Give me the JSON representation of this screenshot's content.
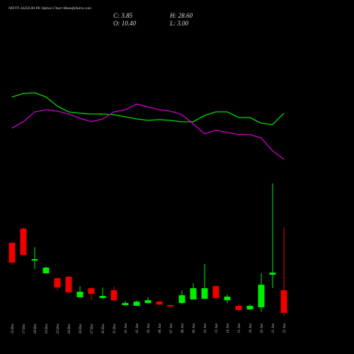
{
  "chart_data": {
    "type": "candlestick",
    "title": "NIFTY 24250.00 PE Option Chart MunafaSutra.com",
    "header": {
      "close": "C: 3.85",
      "high": "H: 28.60",
      "open": "O: 10.40",
      "low": "L: 3.00"
    },
    "categories": [
      "15 Dec",
      "17 Dec",
      "18 Dec",
      "19 Dec",
      "23 Dec",
      "24 Dec",
      "26 Dec",
      "27 Dec",
      "30 Dec",
      "31 Dec",
      "01 Jan",
      "02 Jan",
      "03 Jan",
      "06 Jan",
      "07 Jan",
      "08 Jan",
      "09 Jan",
      "10 Jan",
      "13 Jan",
      "14 Jan",
      "15 Jan",
      "16 Jan",
      "20 Jan",
      "21 Jan",
      "22 Jan"
    ],
    "open": [
      24.1,
      28.2,
      19.0,
      15.3,
      13.9,
      14.3,
      8.35,
      11.0,
      8.15,
      10.4,
      6.1,
      5.9,
      6.72,
      7.13,
      6.1,
      6.72,
      7.74,
      7.94,
      11.6,
      7.53,
      5.9,
      4.87,
      5.49,
      14.9,
      10.4
    ],
    "high": [
      24.5,
      28.6,
      22.9,
      17.2,
      13.9,
      14.5,
      11.6,
      11.2,
      11.2,
      11.4,
      7.33,
      7.53,
      8.35,
      7.3,
      6.2,
      10.4,
      12.45,
      17.97,
      11.8,
      9.17,
      6.5,
      6.3,
      15.3,
      41.3,
      28.6
    ],
    "low": [
      18.2,
      20.5,
      16.5,
      15.2,
      10.4,
      9.6,
      8.35,
      7.53,
      7.94,
      7.4,
      5.9,
      5.9,
      6.51,
      6.1,
      5.6,
      6.3,
      7.74,
      7.94,
      7.94,
      6.72,
      4.3,
      4.67,
      4.26,
      11.0,
      3.0
    ],
    "close": [
      18.4,
      20.6,
      19.4,
      16.95,
      11.2,
      9.79,
      9.99,
      9.38,
      8.76,
      7.53,
      6.72,
      7.13,
      7.53,
      6.3,
      5.69,
      8.97,
      11.0,
      11.0,
      8.15,
      8.56,
      4.67,
      5.9,
      12.0,
      15.5,
      3.85
    ],
    "up_color": "#00ee00",
    "down_color": "#ee0000",
    "ylim": [
      0,
      94.3
    ],
    "series": [
      {
        "color": "#00dd00",
        "values": [
          163,
          168,
          169,
          163,
          150,
          142,
          140,
          139,
          139,
          138,
          135,
          132,
          130,
          131,
          130,
          128,
          128,
          137,
          142,
          142,
          134,
          134,
          126,
          124,
          140
        ]
      },
      {
        "color": "#cc00cc",
        "values": [
          119,
          128,
          142,
          145,
          143,
          139,
          133,
          128,
          132,
          142,
          145,
          153,
          149,
          145,
          143,
          138,
          125,
          111,
          116,
          113,
          110,
          110,
          105,
          87,
          75
        ]
      }
    ],
    "line_ylim": [
      0,
      300
    ]
  }
}
